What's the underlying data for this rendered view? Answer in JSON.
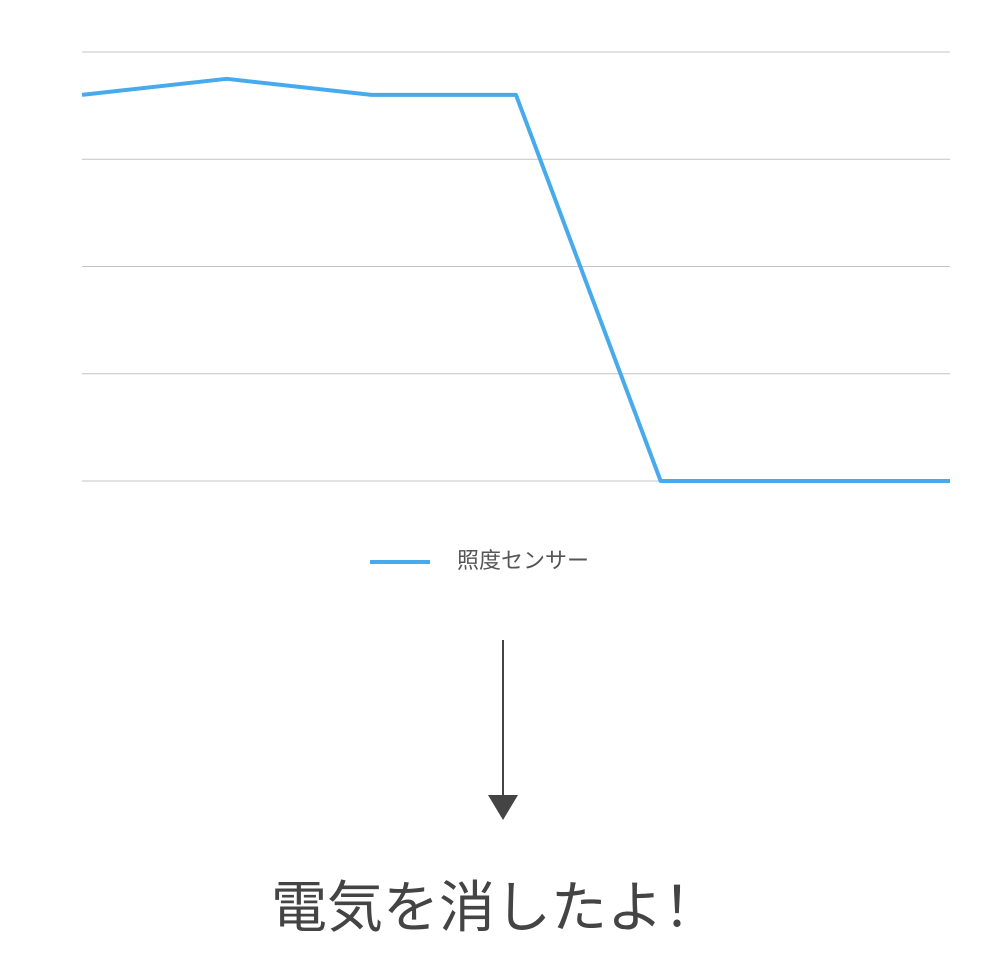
{
  "chart_data": {
    "type": "line",
    "categories": [
      null,
      null,
      null,
      null,
      null,
      null,
      null
    ],
    "series": [
      {
        "name": "照度センサー",
        "color": "#47aaec",
        "values": [
          3.6,
          3.75,
          3.6,
          3.6,
          0,
          0,
          0
        ]
      }
    ],
    "ylim": [
      0,
      4
    ],
    "yticks": [
      0,
      1,
      2,
      3,
      4
    ],
    "grid": true,
    "legend": "bottom"
  },
  "caption": "電気を消したよ！"
}
